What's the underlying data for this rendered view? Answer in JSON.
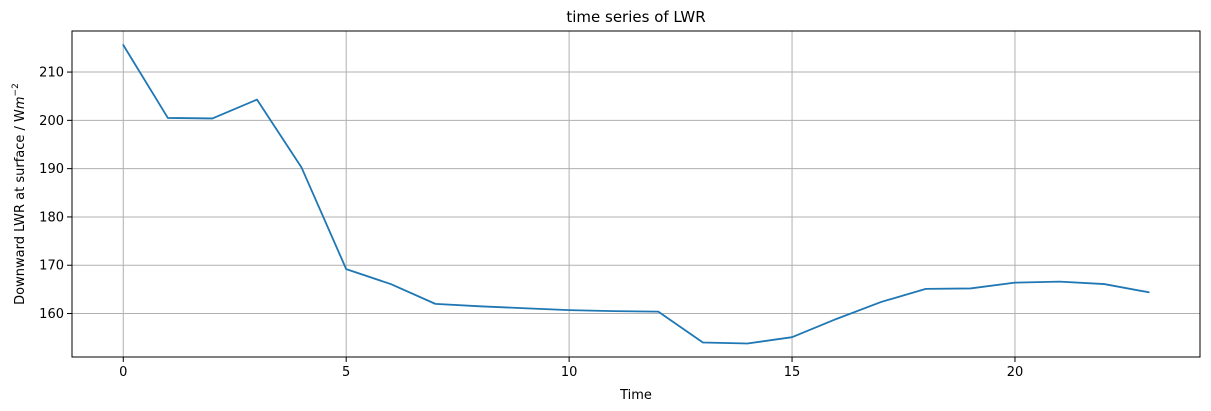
{
  "chart_data": {
    "type": "line",
    "title": "time series of LWR",
    "xlabel": "Time",
    "ylabel": "Downward LWR at surface / W",
    "ylabel_unit": "m",
    "ylabel_exponent": "−2",
    "xlim": [
      -1.15,
      24.15
    ],
    "ylim": [
      151.0,
      218.5
    ],
    "xticks": [
      0,
      5,
      10,
      15,
      20
    ],
    "yticks": [
      160,
      170,
      180,
      190,
      200,
      210
    ],
    "grid": true,
    "series": [
      {
        "color": "#1f77b4",
        "x": [
          0,
          1,
          2,
          3,
          4,
          5,
          6,
          7,
          8,
          9,
          10,
          11,
          12,
          13,
          14,
          15,
          16,
          17,
          18,
          19,
          20,
          21,
          22,
          23
        ],
        "values": [
          215.6,
          200.5,
          200.4,
          204.3,
          190.2,
          169.2,
          166.1,
          162.0,
          161.5,
          161.1,
          160.7,
          160.5,
          160.4,
          154.0,
          153.8,
          155.1,
          158.9,
          162.4,
          165.1,
          165.2,
          166.4,
          166.6,
          166.1,
          164.4
        ]
      }
    ]
  }
}
